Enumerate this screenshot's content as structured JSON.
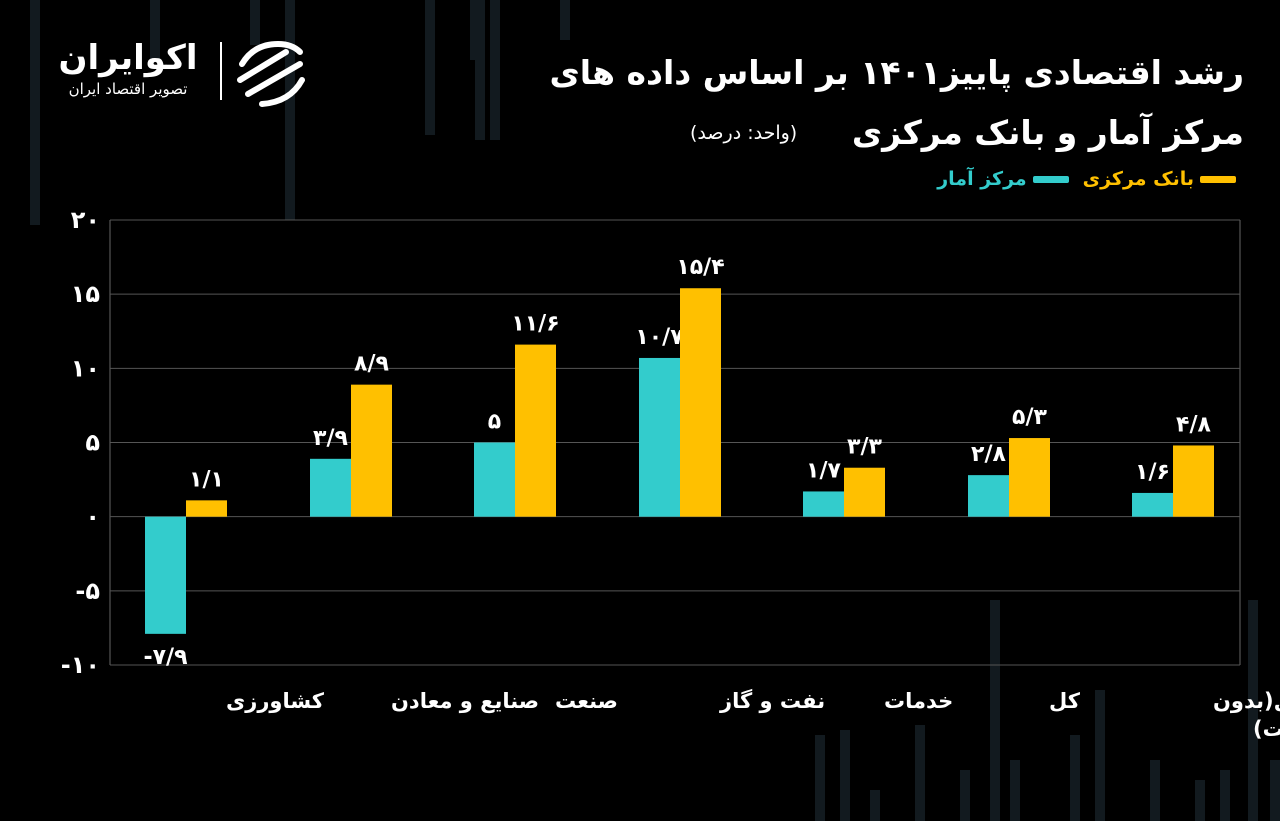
{
  "brand": {
    "name": "اکوایران",
    "subtitle": "تصویر اقتصاد ایران"
  },
  "title_line1": "رشد اقتصادی پاییز۱۴۰۱ بر اساس داده های",
  "title_line2": "مرکز آمار و بانک مرکزی",
  "unit": "(واحد: درصد)",
  "colors": {
    "background": "#000000",
    "central_bank": "#FFC000",
    "statistics_center": "#33CCCC",
    "text": "#FFFFFF"
  },
  "chart_data": {
    "type": "bar",
    "categories": [
      "کشاورزی",
      "صنایع و معادن",
      "صنعت",
      "نفت و گاز",
      "خدمات",
      "کل",
      "کل(بدون\nاحتساب نفت)"
    ],
    "series": [
      {
        "name": "مرکز آمار",
        "color": "#33CCCC",
        "values": [
          -7.9,
          3.9,
          5,
          10.7,
          1.7,
          2.8,
          1.6
        ],
        "labels": [
          "-۷/۹",
          "۳/۹",
          "۵",
          "۱۰/۷",
          "۱/۷",
          "۲/۸",
          "۱/۶"
        ]
      },
      {
        "name": "بانک مرکزی",
        "color": "#FFC000",
        "values": [
          1.1,
          8.9,
          11.6,
          15.4,
          3.3,
          5.3,
          4.8
        ],
        "labels": [
          "۱/۱",
          "۸/۹",
          "۱۱/۶",
          "۱۵/۴",
          "۳/۳",
          "۵/۳",
          "۴/۸"
        ]
      }
    ],
    "ylim": [
      -10,
      20
    ],
    "yticks": [
      20,
      15,
      10,
      5,
      0,
      -5,
      -10
    ],
    "ytick_labels": [
      "۲۰",
      "۱۵",
      "۱۰",
      "۵",
      "۰",
      "-۵",
      "-۱۰"
    ],
    "grid": true,
    "legend_position": "top-right",
    "title": "رشد اقتصادی پاییز۱۴۰۱ بر اساس داده های مرکز آمار و بانک مرکزی",
    "ylabel": "درصد"
  }
}
